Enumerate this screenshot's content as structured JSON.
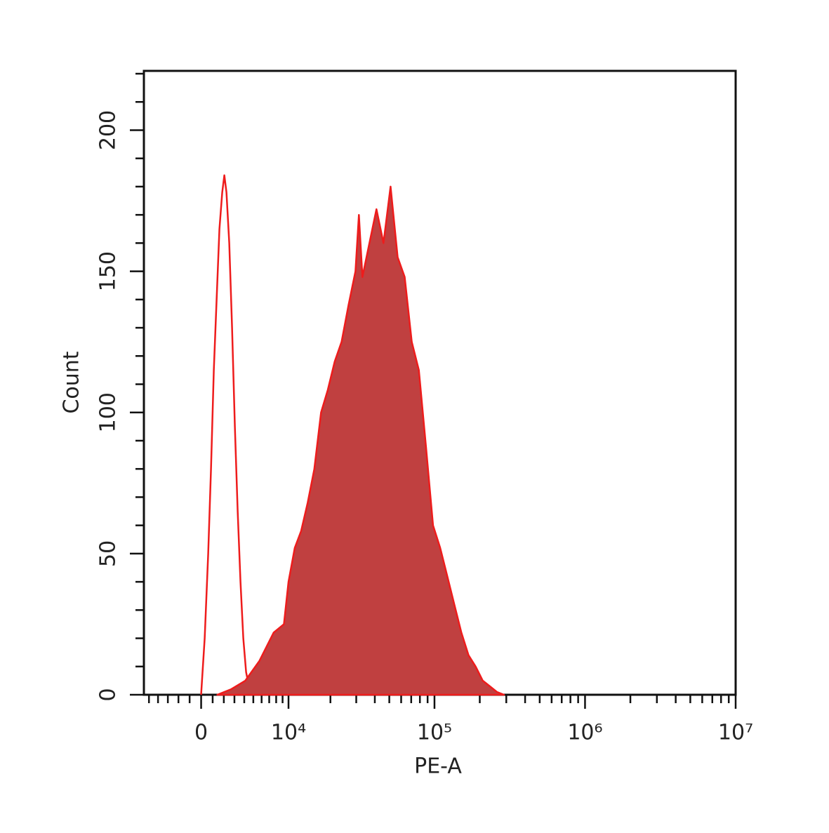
{
  "chart_data": {
    "type": "area",
    "x_label": "PE-A",
    "y_label": "Count",
    "xscale": "asinh",
    "xlim": [
      -5600,
      10000000
    ],
    "xticks": [
      0,
      {
        "value": 10000,
        "label": "10⁴"
      },
      {
        "value": 100000,
        "label": "10⁵"
      },
      {
        "value": 1000000,
        "label": "10⁶"
      },
      {
        "value": 10000000,
        "label": "10⁷"
      }
    ],
    "xminorticks": [
      -5000,
      -4000,
      -3000,
      -2000,
      -1000,
      1000,
      2000,
      3000,
      4000,
      5000,
      6000,
      7000,
      8000,
      9000,
      20000,
      30000,
      40000,
      50000,
      60000,
      70000,
      80000,
      90000,
      200000,
      300000,
      400000,
      500000,
      600000,
      700000,
      800000,
      900000,
      2000000,
      3000000,
      4000000,
      5000000,
      6000000,
      7000000,
      8000000,
      9000000
    ],
    "ylim": [
      0,
      221
    ],
    "yticks": [
      0,
      50,
      100,
      150,
      200
    ],
    "yminorticks": [
      10,
      20,
      30,
      40,
      60,
      70,
      80,
      90,
      110,
      120,
      130,
      140,
      160,
      170,
      180,
      190,
      210,
      220
    ],
    "grid": false,
    "series": [
      {
        "color": "#ee1c1c",
        "fill": "none",
        "x": [
          0,
          304,
          608,
          853,
          1099,
          1348,
          1599,
          1852,
          2045,
          2239,
          2502,
          2770,
          3043,
          3322,
          3606,
          3896,
          4194,
          4506,
          4896
        ],
        "values": [
          0,
          20,
          50,
          80,
          115,
          140,
          165,
          178,
          184,
          178,
          160,
          130,
          95,
          65,
          40,
          20,
          8,
          3,
          0
        ]
      },
      {
        "color": "#ee1c1c",
        "fill": "#c04040",
        "x": [
          1410,
          2703,
          4117,
          5730,
          7624,
          9225,
          10000,
          11150,
          12420,
          13850,
          15440,
          17220,
          19190,
          21400,
          23850,
          26580,
          29630,
          31260,
          33030,
          36810,
          41030,
          45730,
          50980,
          56830,
          63350,
          70610,
          78710,
          87740,
          97860,
          109100,
          121600,
          135500,
          151000,
          168400,
          187700,
          209200,
          233200,
          260000,
          289800
        ],
        "values": [
          0,
          2,
          5,
          12,
          22,
          25,
          40,
          52,
          58,
          68,
          80,
          100,
          108,
          118,
          125,
          138,
          150,
          170,
          148,
          160,
          172,
          160,
          180,
          155,
          148,
          125,
          115,
          88,
          60,
          52,
          42,
          32,
          22,
          14,
          10,
          5,
          3,
          1,
          0
        ]
      }
    ]
  }
}
